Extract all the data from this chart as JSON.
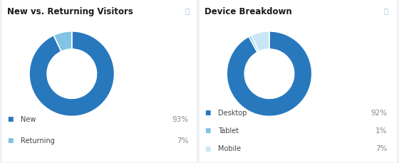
{
  "chart1_title": "New vs. Returning Visitors",
  "chart1_labels": [
    "New",
    "Returning"
  ],
  "chart1_values": [
    93,
    7
  ],
  "chart1_colors": [
    "#2878be",
    "#82c4e6"
  ],
  "chart1_percentages": [
    "93%",
    "7%"
  ],
  "chart2_title": "Device Breakdown",
  "chart2_labels": [
    "Desktop",
    "Tablet",
    "Mobile"
  ],
  "chart2_values": [
    92,
    1,
    7
  ],
  "chart2_colors": [
    "#2878be",
    "#82c4e6",
    "#c8e6f5"
  ],
  "chart2_percentages": [
    "92%",
    "1%",
    "7%"
  ],
  "bg_color": "#eef0f5",
  "panel_color": "#ffffff",
  "divider_color": "#d0d8e8",
  "title_color": "#1a1a1a",
  "legend_label_color": "#444444",
  "pct_color": "#888888",
  "info_icon_color": "#a8c0d8",
  "title_fontsize": 8.5,
  "legend_fontsize": 7.0,
  "pct_fontsize": 7.5
}
